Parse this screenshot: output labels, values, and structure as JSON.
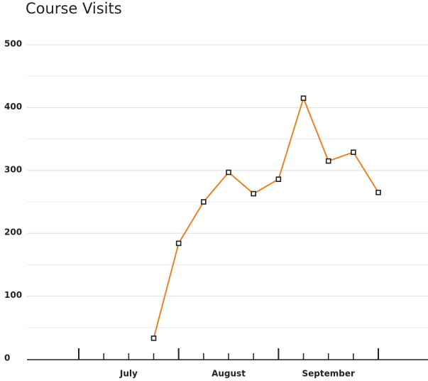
{
  "chart_data": {
    "type": "line",
    "title": "Course Visits",
    "categories": [
      null,
      null,
      null,
      null,
      null,
      null,
      null,
      null,
      null,
      null,
      null,
      null,
      null
    ],
    "months": [
      "July",
      "August",
      "September"
    ],
    "series": [
      {
        "name": "Course Visits",
        "color": "#e8832a",
        "values": [
          null,
          null,
          null,
          33,
          184,
          250,
          297,
          263,
          286,
          415,
          315,
          329,
          265
        ]
      }
    ],
    "ylim": [
      0,
      500
    ],
    "yticks": [
      0,
      100,
      200,
      300,
      400,
      500
    ],
    "minor_yticks": [
      50,
      150,
      250,
      350,
      450
    ],
    "grid": true
  }
}
